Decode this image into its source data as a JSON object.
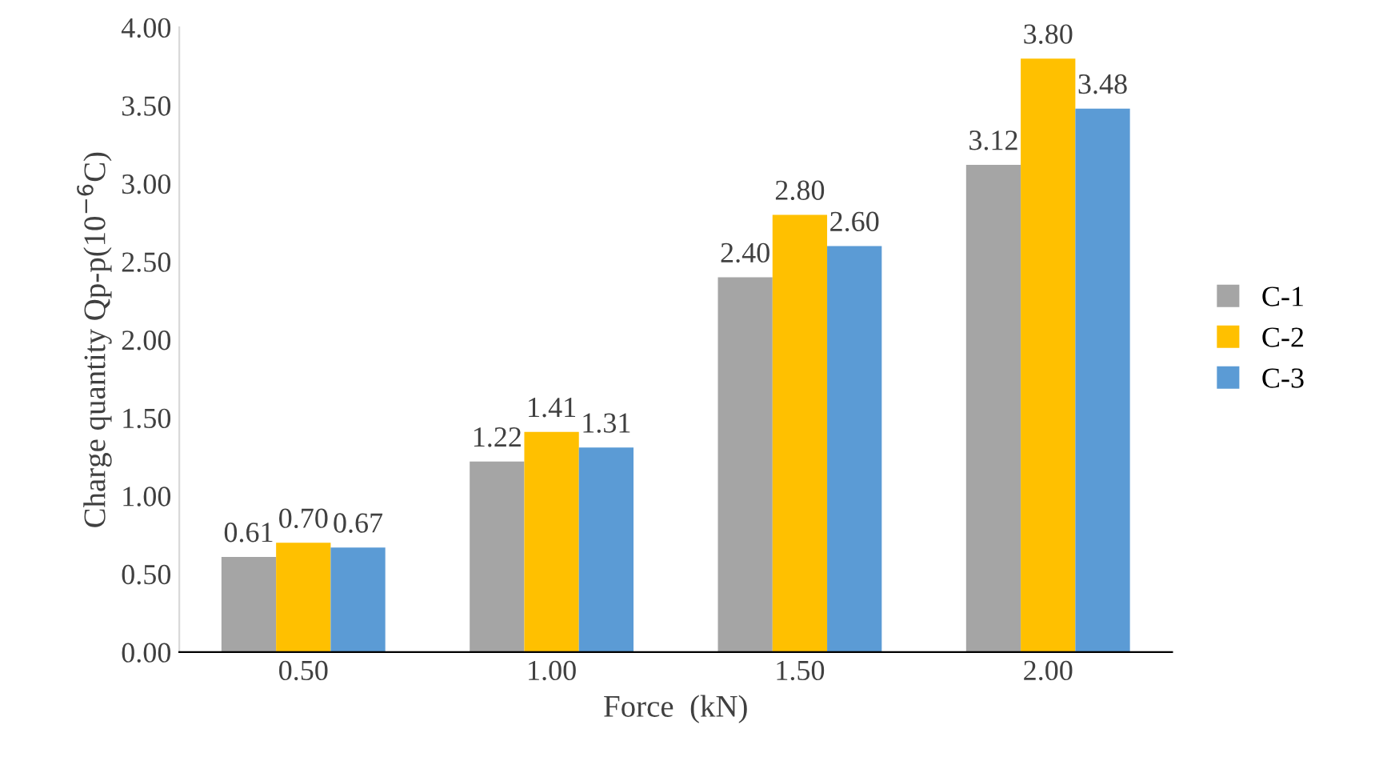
{
  "chart_data": {
    "type": "bar",
    "xlabel": "Force  (kN)",
    "ylabel": "Charge quantity Qp-p(10$^{−6}$C)",
    "categories": [
      "0.50",
      "1.00",
      "1.50",
      "2.00"
    ],
    "series": [
      {
        "name": "C-1",
        "color": "#a5a5a5",
        "values": [
          0.61,
          1.22,
          2.4,
          3.12
        ],
        "value_labels": [
          "0.61",
          "1.22",
          "2.40",
          "3.12"
        ]
      },
      {
        "name": "C-2",
        "color": "#ffc000",
        "values": [
          0.7,
          1.41,
          2.8,
          3.8
        ],
        "value_labels": [
          "0.70",
          "1.41",
          "2.80",
          "3.80"
        ]
      },
      {
        "name": "C-3",
        "color": "#5b9bd5",
        "values": [
          0.67,
          1.31,
          2.6,
          3.48
        ],
        "value_labels": [
          "0.67",
          "1.31",
          "2.60",
          "3.48"
        ]
      }
    ],
    "ylim": [
      0,
      4
    ],
    "yticks": [
      {
        "value": 0,
        "label": "0.00"
      },
      {
        "value": 0.5,
        "label": "0.50"
      },
      {
        "value": 1,
        "label": "1.00"
      },
      {
        "value": 1.5,
        "label": "1.50"
      },
      {
        "value": 2,
        "label": "2.00"
      },
      {
        "value": 2.5,
        "label": "2.50"
      },
      {
        "value": 3,
        "label": "3.00"
      },
      {
        "value": 3.5,
        "label": "3.50"
      },
      {
        "value": 4,
        "label": "4.00"
      }
    ],
    "grid": false,
    "legend": "right"
  }
}
